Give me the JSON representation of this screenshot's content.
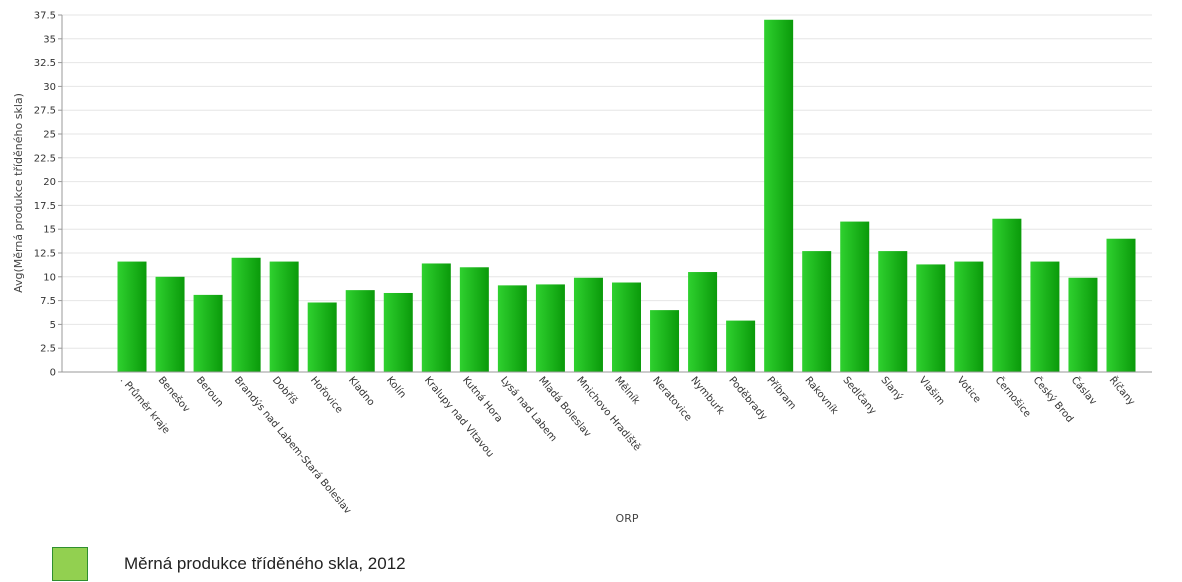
{
  "chart_data": {
    "type": "bar",
    "xlabel": "ORP",
    "ylabel": "Avg(Měrná produkce tříděného skla)",
    "ylim": [
      0,
      37.5
    ],
    "y_ticks": [
      0,
      2.5,
      5,
      7.5,
      10,
      12.5,
      15,
      17.5,
      20,
      22.5,
      25,
      27.5,
      30,
      32.5,
      35,
      37.5
    ],
    "y_tick_labels": [
      "0",
      "2.5",
      "5",
      "7.5",
      "10",
      "12.5",
      "15",
      "17.5",
      "20",
      "22.5",
      "25",
      "27.5",
      "30",
      "32.5",
      "35",
      "37.5"
    ],
    "grid": true,
    "legend_position": "bottom-left",
    "categories": [
      ". Průměr kraje",
      "Benešov",
      "Beroun",
      "Brandýs nad Labem-Stará Boleslav",
      "Dobříš",
      "Hořovice",
      "Kladno",
      "Kolín",
      "Kralupy nad Vltavou",
      "Kutná Hora",
      "Lysá nad Labem",
      "Mladá Boleslav",
      "Mnichovo Hradiště",
      "Mělník",
      "Neratovice",
      "Nymburk",
      "Poděbrady",
      "Příbram",
      "Rakovník",
      "Sedlčany",
      "Slaný",
      "Vlašim",
      "Votice",
      "Černošice",
      "Český Brod",
      "Čáslav",
      "Říčany"
    ],
    "series": [
      {
        "name": "Měrná produkce tříděného skla, 2012",
        "color": "#1cb81c",
        "values": [
          11.6,
          10.0,
          8.1,
          12.0,
          11.6,
          7.3,
          8.6,
          8.3,
          11.4,
          11.0,
          9.1,
          9.2,
          9.9,
          9.4,
          6.5,
          10.5,
          5.4,
          37.0,
          12.7,
          15.8,
          12.7,
          11.3,
          11.6,
          16.1,
          11.6,
          9.9,
          14.0
        ]
      }
    ]
  },
  "legend": {
    "label": "Měrná produkce tříděného skla, 2012",
    "swatch_color": "#92d050"
  }
}
